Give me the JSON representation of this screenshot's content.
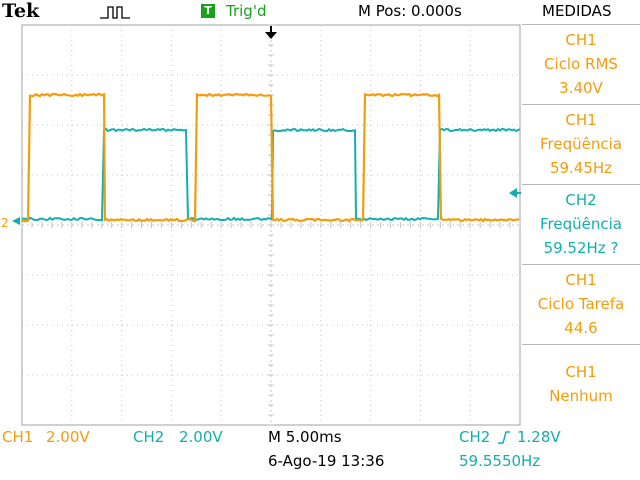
{
  "header": {
    "brand": "Tek",
    "acquire_icon": "pulse-icon",
    "trigger_badge": "T",
    "trigger_status": "Trig'd",
    "m_pos": "M Pos: 0.000s",
    "menu_title": "MEDIDAS"
  },
  "measurements": [
    {
      "line1": "CH1",
      "line2": "Ciclo RMS",
      "line3": "3.40V",
      "color": "#f39c0c"
    },
    {
      "line1": "CH1",
      "line2": "Freqüência",
      "line3": "59.45Hz",
      "color": "#f39c0c"
    },
    {
      "line1": "CH2",
      "line2": "Freqüência",
      "line3": "59.52Hz ?",
      "color": "#13aeb0"
    },
    {
      "line1": "CH1",
      "line2": "Ciclo Tarefa",
      "line3": "44.6",
      "color": "#f39c0c"
    },
    {
      "line1": "CH1",
      "line2": "Nenhum",
      "line3": "",
      "color": "#f39c0c"
    }
  ],
  "footer": {
    "ch1_label": "CH1",
    "ch1_scale": "2.00V",
    "ch2_label": "CH2",
    "ch2_scale": "2.00V",
    "timebase": "M 5.00ms",
    "trigger_source": "CH2",
    "trigger_level": "1.28V",
    "datetime": "6-Ago-19 13:36",
    "frequency": "59.5550Hz"
  },
  "ground_marker": "2",
  "colors": {
    "ch1": "#f39c0c",
    "ch2": "#13aeb0",
    "trigger": "#1aa11a"
  }
}
